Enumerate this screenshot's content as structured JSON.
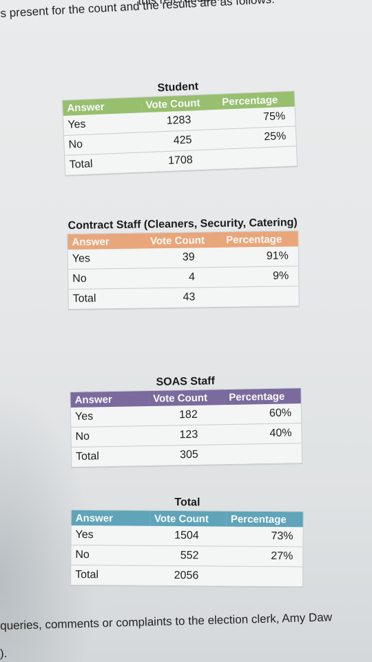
{
  "header": {
    "line1": "this referendum, am satisfied",
    "line2": "s present for the count and the results are as follows:"
  },
  "columns": {
    "answer": "Answer",
    "vote_count": "Vote Count",
    "percentage": "Percentage"
  },
  "tables": {
    "student": {
      "title": "Student",
      "header_color": "#97bf6e",
      "rows": [
        {
          "answer": "Yes",
          "count": "1283",
          "pct": "75%"
        },
        {
          "answer": "No",
          "count": "425",
          "pct": "25%"
        },
        {
          "answer": "Total",
          "count": "1708",
          "pct": ""
        }
      ]
    },
    "contract": {
      "title": "Contract Staff (Cleaners, Security, Catering)",
      "header_color": "#e9a67a",
      "rows": [
        {
          "answer": "Yes",
          "count": "39",
          "pct": "91%"
        },
        {
          "answer": "No",
          "count": "4",
          "pct": "9%"
        },
        {
          "answer": "Total",
          "count": "43",
          "pct": ""
        }
      ]
    },
    "soas": {
      "title": "SOAS Staff",
      "header_color": "#7a6a9d",
      "rows": [
        {
          "answer": "Yes",
          "count": "182",
          "pct": "60%"
        },
        {
          "answer": "No",
          "count": "123",
          "pct": "40%"
        },
        {
          "answer": "Total",
          "count": "305",
          "pct": ""
        }
      ]
    },
    "total": {
      "title": "Total",
      "header_color": "#5fa4b9",
      "rows": [
        {
          "answer": "Yes",
          "count": "1504",
          "pct": "73%"
        },
        {
          "answer": "No",
          "count": "552",
          "pct": "27%"
        },
        {
          "answer": "Total",
          "count": "2056",
          "pct": ""
        }
      ]
    }
  },
  "footer": {
    "line1": "queries, comments or complaints to the election clerk, Amy Daw",
    "line2": ")."
  }
}
